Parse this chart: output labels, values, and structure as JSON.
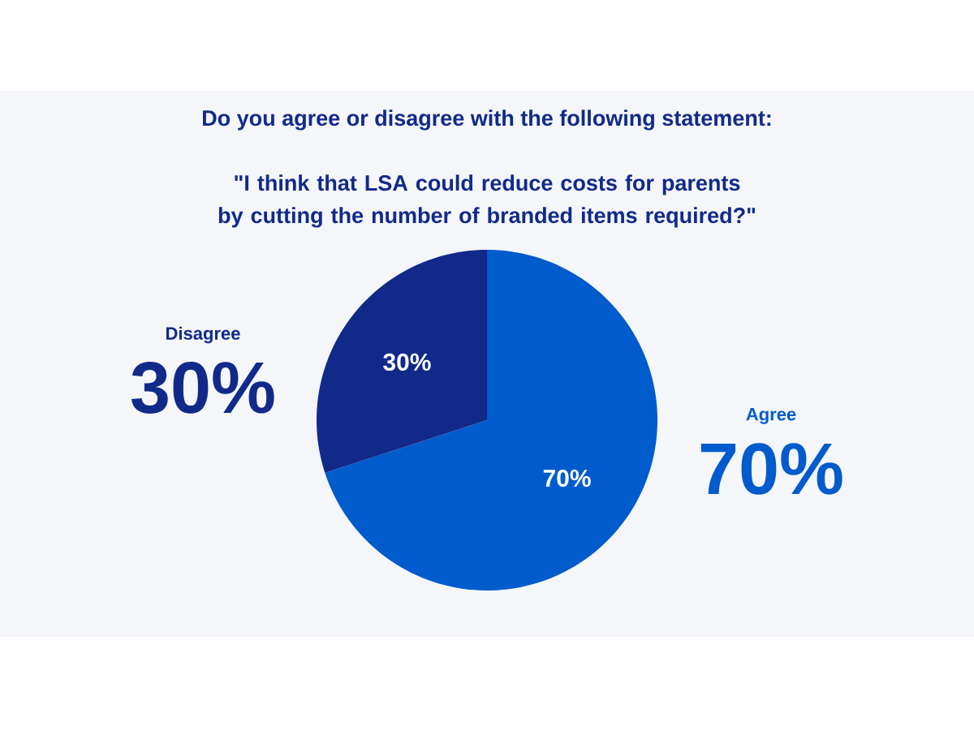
{
  "chart_data": {
    "type": "pie",
    "title": "Do you agree or disagree with the following statement:",
    "subtitle": "\"I think that LSA could reduce costs for parents by cutting the number of branded items required?\"",
    "categories": [
      "Agree",
      "Disagree"
    ],
    "values": [
      70,
      30
    ],
    "colors": [
      "#005bcc",
      "#112a8a"
    ],
    "value_labels": [
      "70%",
      "30%"
    ]
  }
}
